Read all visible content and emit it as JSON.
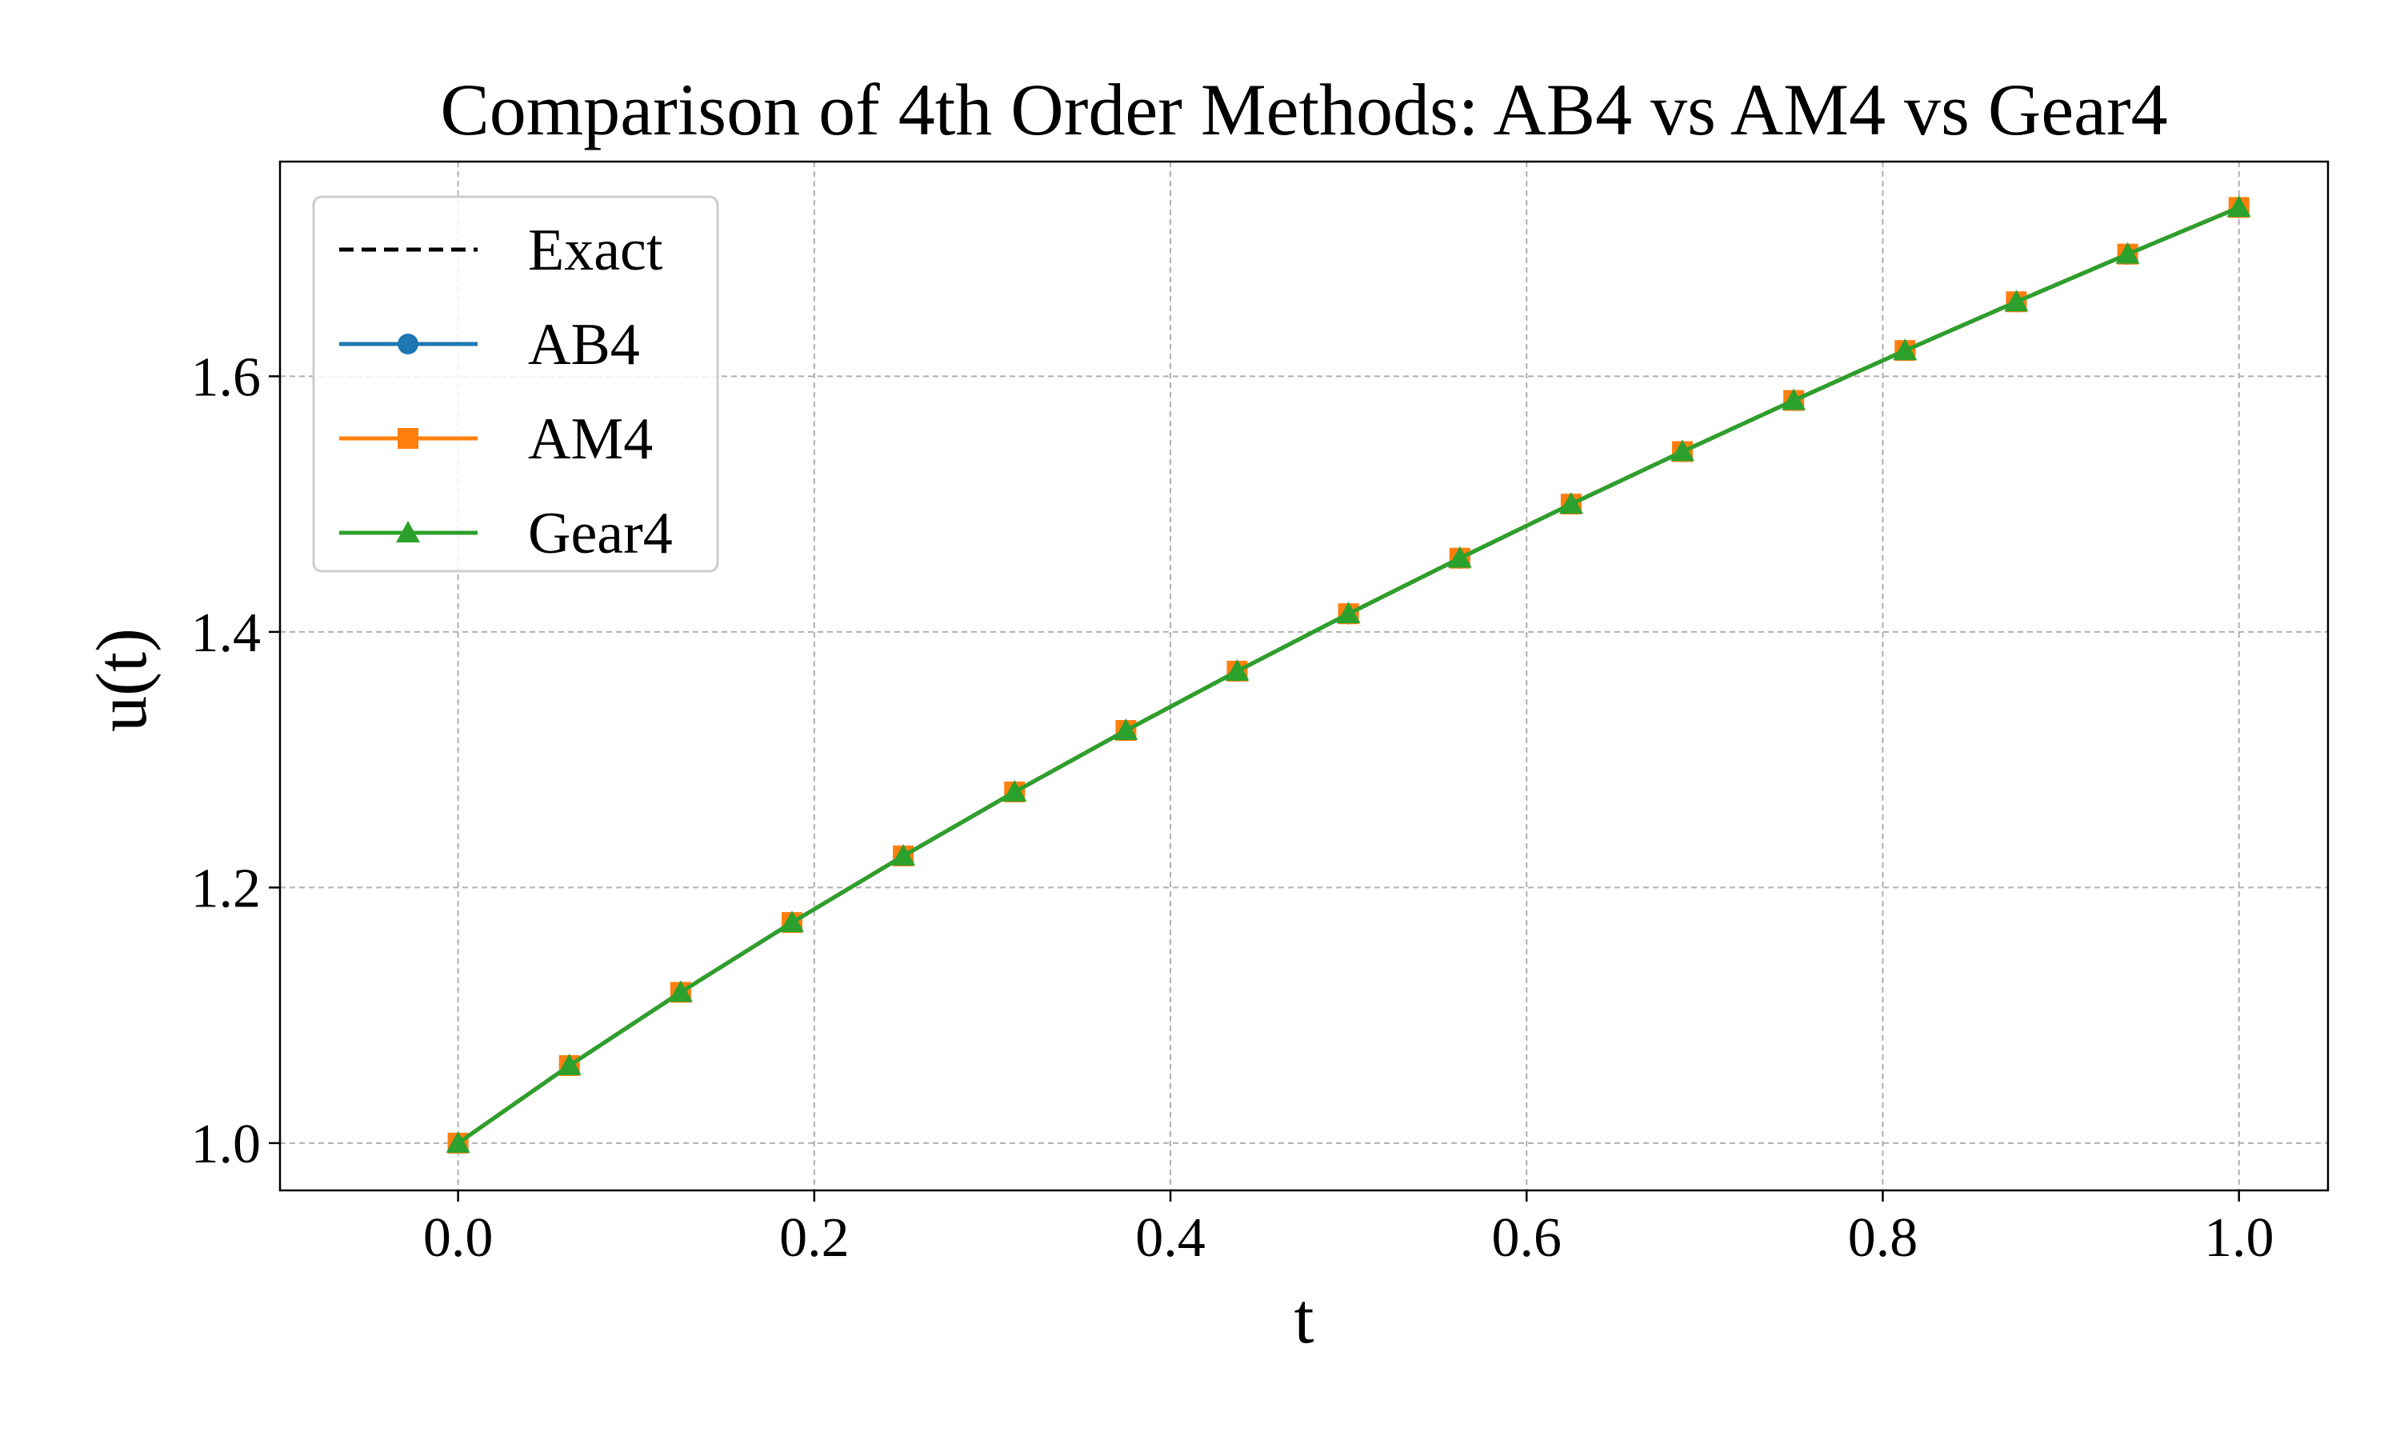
{
  "chart_data": {
    "type": "line",
    "title": "Comparison of 4th Order Methods: AB4 vs AM4 vs Gear4",
    "xlabel": "t",
    "ylabel": "u(t)",
    "xlim": [
      -0.1,
      1.05
    ],
    "ylim": [
      0.963,
      1.768
    ],
    "x_ticks": [
      "0.0",
      "0.2",
      "0.4",
      "0.6",
      "0.8",
      "1.0"
    ],
    "y_ticks": [
      "1.0",
      "1.2",
      "1.4",
      "1.6"
    ],
    "grid": true,
    "legend_position": "top-left",
    "x": [
      0.0,
      0.0625,
      0.125,
      0.1875,
      0.25,
      0.3125,
      0.375,
      0.4375,
      0.5,
      0.5625,
      0.625,
      0.6875,
      0.75,
      0.8125,
      0.875,
      0.9375,
      1.0
    ],
    "series": [
      {
        "name": "Exact",
        "color": "#000000",
        "style": "dashed",
        "marker": "none",
        "values": [
          1.0,
          1.0607,
          1.118,
          1.1726,
          1.2247,
          1.2748,
          1.3229,
          1.3693,
          1.4142,
          1.4577,
          1.5,
          1.5411,
          1.5811,
          1.6202,
          1.6583,
          1.6956,
          1.7321
        ]
      },
      {
        "name": "AB4",
        "color": "#1f77b4",
        "style": "solid",
        "marker": "circle",
        "values": [
          1.0,
          1.0607,
          1.118,
          1.1726,
          1.2246,
          1.2747,
          1.3228,
          1.3692,
          1.4141,
          1.4576,
          1.4999,
          1.541,
          1.581,
          1.6201,
          1.6582,
          1.6955,
          1.732
        ]
      },
      {
        "name": "AM4",
        "color": "#ff7f0e",
        "style": "solid",
        "marker": "square",
        "values": [
          1.0,
          1.0607,
          1.118,
          1.1726,
          1.2247,
          1.2748,
          1.3229,
          1.3693,
          1.4142,
          1.4577,
          1.5,
          1.5411,
          1.5811,
          1.6202,
          1.6583,
          1.6956,
          1.7321
        ]
      },
      {
        "name": "Gear4",
        "color": "#2ca02c",
        "style": "solid",
        "marker": "triangle",
        "values": [
          1.0,
          1.0607,
          1.118,
          1.1726,
          1.2247,
          1.2748,
          1.3229,
          1.3693,
          1.4142,
          1.4577,
          1.5,
          1.5411,
          1.5811,
          1.6202,
          1.6583,
          1.6956,
          1.7321
        ]
      }
    ]
  }
}
